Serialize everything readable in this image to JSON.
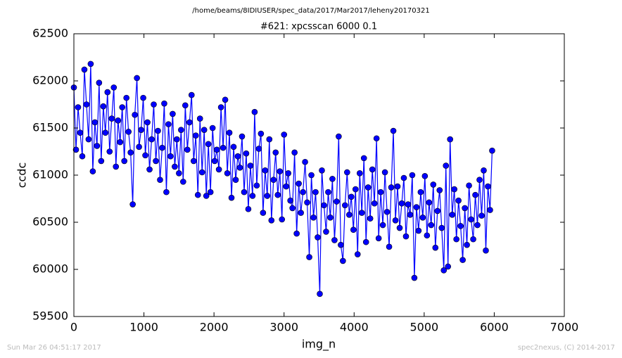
{
  "chart_data": {
    "type": "line",
    "title": "/home/beams/8IDIUSER/spec_data/2017/Mar2017/leheny20170321",
    "subtitle": "#621: xpcsscan 6000 0.1",
    "xlabel": "img_n",
    "ylabel": "ccdc",
    "footer_left": "Sun Mar 26 04:51:17 2017",
    "footer_right": "spec2nexus, (C) 2014-2017",
    "xlim": [
      0,
      7000
    ],
    "xticks": [
      0,
      1000,
      2000,
      3000,
      4000,
      5000,
      6000,
      7000
    ],
    "ylim": [
      59500,
      62500
    ],
    "yticks": [
      59500,
      60000,
      60500,
      61000,
      61500,
      62000,
      62500
    ],
    "grid": false,
    "x": [
      0,
      30,
      60,
      90,
      120,
      150,
      180,
      210,
      240,
      270,
      300,
      330,
      360,
      390,
      420,
      450,
      480,
      510,
      540,
      570,
      600,
      630,
      660,
      690,
      720,
      750,
      780,
      810,
      840,
      870,
      900,
      930,
      960,
      990,
      1020,
      1050,
      1080,
      1110,
      1140,
      1170,
      1200,
      1230,
      1260,
      1290,
      1320,
      1350,
      1380,
      1410,
      1440,
      1470,
      1500,
      1530,
      1560,
      1590,
      1620,
      1650,
      1680,
      1710,
      1740,
      1770,
      1800,
      1830,
      1860,
      1890,
      1920,
      1950,
      1980,
      2010,
      2040,
      2070,
      2100,
      2130,
      2160,
      2190,
      2220,
      2250,
      2280,
      2310,
      2340,
      2370,
      2400,
      2430,
      2460,
      2490,
      2520,
      2550,
      2580,
      2610,
      2640,
      2670,
      2700,
      2730,
      2760,
      2790,
      2820,
      2850,
      2880,
      2910,
      2940,
      2970,
      3000,
      3030,
      3060,
      3090,
      3120,
      3150,
      3180,
      3210,
      3240,
      3270,
      3300,
      3330,
      3360,
      3390,
      3420,
      3450,
      3480,
      3510,
      3540,
      3570,
      3600,
      3630,
      3660,
      3690,
      3720,
      3750,
      3780,
      3810,
      3840,
      3870,
      3900,
      3930,
      3960,
      3990,
      4020,
      4050,
      4080,
      4110,
      4140,
      4170,
      4200,
      4230,
      4260,
      4290,
      4320,
      4350,
      4380,
      4410,
      4440,
      4470,
      4500,
      4530,
      4560,
      4590,
      4620,
      4650,
      4680,
      4710,
      4740,
      4770,
      4800,
      4830,
      4860,
      4890,
      4920,
      4950,
      4980,
      5010,
      5040,
      5070,
      5100,
      5130,
      5160,
      5190,
      5220,
      5250,
      5280,
      5310,
      5340,
      5370,
      5400,
      5430,
      5460,
      5490,
      5520,
      5550,
      5580,
      5610,
      5640,
      5670,
      5700,
      5730,
      5760,
      5790,
      5820,
      5850,
      5880,
      5910,
      5940,
      5970
    ],
    "series": [
      {
        "color": "#0000ff",
        "values": [
          61930,
          61270,
          61720,
          61450,
          61200,
          62120,
          61750,
          61380,
          62180,
          61040,
          61560,
          61310,
          61980,
          61150,
          61730,
          61450,
          61880,
          61250,
          61600,
          61930,
          61090,
          61580,
          61350,
          61720,
          61150,
          61820,
          61460,
          61240,
          60690,
          61640,
          62030,
          61300,
          61480,
          61820,
          61210,
          61560,
          61060,
          61380,
          61750,
          61150,
          61470,
          60950,
          61290,
          61760,
          60820,
          61540,
          61200,
          61650,
          61090,
          61380,
          61020,
          61480,
          60930,
          61740,
          61270,
          61560,
          61850,
          61150,
          61420,
          60790,
          61600,
          61030,
          61480,
          60780,
          61330,
          60820,
          61500,
          61150,
          61270,
          61060,
          61720,
          61290,
          61800,
          61020,
          61450,
          60760,
          61300,
          60950,
          61200,
          61080,
          61410,
          60820,
          61230,
          60640,
          61100,
          60780,
          61670,
          60890,
          61280,
          61440,
          60600,
          61050,
          60780,
          61380,
          60520,
          60950,
          61240,
          60790,
          61040,
          60530,
          61430,
          60880,
          61020,
          60730,
          60650,
          61240,
          60380,
          60910,
          60600,
          60820,
          61140,
          60710,
          60130,
          61000,
          60550,
          60820,
          60340,
          59740,
          61050,
          60680,
          60400,
          60820,
          60550,
          60960,
          60310,
          60720,
          61410,
          60260,
          60090,
          60680,
          61030,
          60580,
          60770,
          60420,
          60850,
          60160,
          61020,
          60600,
          61180,
          60290,
          60870,
          60540,
          61060,
          60700,
          61390,
          60330,
          60820,
          60470,
          61030,
          60610,
          60240,
          60870,
          61470,
          60520,
          60880,
          60440,
          60700,
          60970,
          60350,
          60690,
          60580,
          61000,
          59910,
          60660,
          60410,
          60820,
          60550,
          60990,
          60360,
          60710,
          60470,
          60900,
          60230,
          60620,
          60840,
          60440,
          59990,
          61100,
          60030,
          61380,
          60580,
          60850,
          60320,
          60730,
          60460,
          60100,
          60650,
          60260,
          60890,
          60530,
          60320,
          60790,
          60470,
          60950,
          60570,
          61050,
          60200,
          60880,
          60630,
          61260
        ]
      }
    ]
  }
}
